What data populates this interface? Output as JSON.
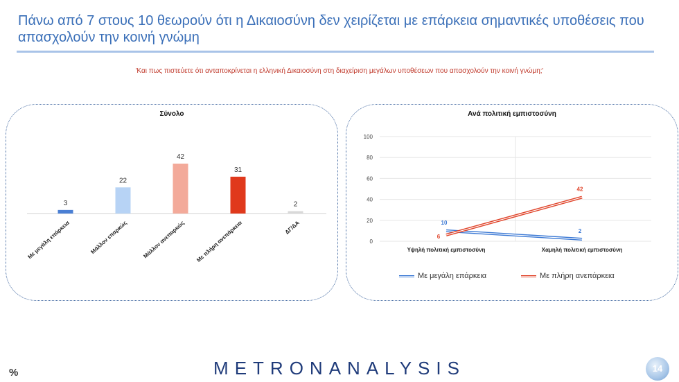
{
  "slide": {
    "title": "Πάνω από 7 στους 10 θεωρούν ότι η Δικαιοσύνη δεν χειρίζεται με επάρκεια σημαντικές υποθέσεις που απασχολούν την κοινή γνώμη",
    "question": "'Και πως πιστεύετε ότι ανταποκρίνεται η ελληνική Δικαιοσύνη στη διαχείριση μεγάλων υποθέσεων που απασχολούν την κοινή γνώμη;'",
    "percent_symbol": "%",
    "logo_text": "METRONANALYSIS",
    "page_number": "14"
  },
  "chart_data": [
    {
      "type": "bar",
      "title": "Σύνολο",
      "categories": [
        "Με μεγάλη επάρκεια",
        "Μάλλον επαρκώς",
        "Μάλλον ανεπαρκώς",
        "Με πλήρη ανεπάρκεια",
        "ΔΓ/ΔΑ"
      ],
      "values": [
        3,
        22,
        42,
        31,
        2
      ],
      "colors": [
        "#4a7fd4",
        "#b7d3f5",
        "#f3aa9a",
        "#e0391c",
        "#d9d9d9"
      ],
      "ylim": [
        0,
        42
      ]
    },
    {
      "type": "line",
      "title": "Ανά πολιτική εμπιστοσύνη",
      "categories": [
        "Υψηλή πολιτική εμπιστοσύνη",
        "Χαμηλή πολιτική εμπιστοσύνη"
      ],
      "ylim": [
        0,
        100
      ],
      "yticks": [
        0,
        20,
        40,
        60,
        80,
        100
      ],
      "grid": true,
      "legend_position": "bottom",
      "series": [
        {
          "name": "Με μεγάλη επάρκεια",
          "values": [
            10,
            2
          ],
          "color": "#3a78d4"
        },
        {
          "name": "Με πλήρη ανεπάρκεια",
          "values": [
            6,
            42
          ],
          "color": "#e0442a"
        }
      ]
    }
  ]
}
